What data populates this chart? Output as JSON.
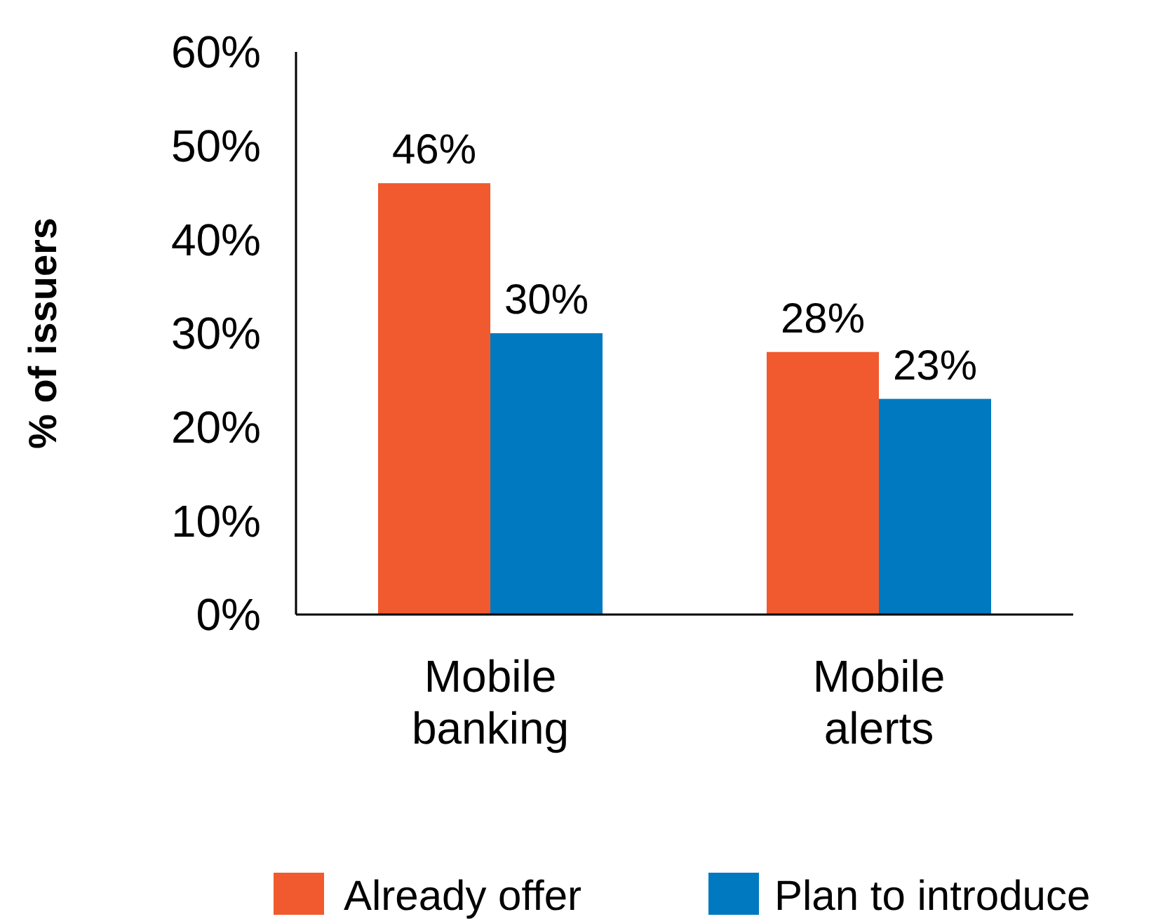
{
  "chart_data": {
    "type": "bar",
    "ylabel": "% of issuers",
    "categories": [
      "Mobile banking",
      "Mobile alerts"
    ],
    "series": [
      {
        "name": "Already offer",
        "color": "#f05a2e",
        "values": [
          46,
          28
        ],
        "value_labels": [
          "46%",
          "28%"
        ]
      },
      {
        "name": "Plan to introduce",
        "color": "#0079c1",
        "values": [
          30,
          23
        ],
        "value_labels": [
          "30%",
          "23%"
        ]
      }
    ],
    "ylim": [
      0,
      60
    ],
    "yticks": [
      {
        "value": 0,
        "label": "0%"
      },
      {
        "value": 10,
        "label": "10%"
      },
      {
        "value": 20,
        "label": "20%"
      },
      {
        "value": 30,
        "label": "30%"
      },
      {
        "value": 40,
        "label": "40%"
      },
      {
        "value": 50,
        "label": "50%"
      },
      {
        "value": 60,
        "label": "60%"
      }
    ],
    "grid": false,
    "legend": "bottom"
  }
}
